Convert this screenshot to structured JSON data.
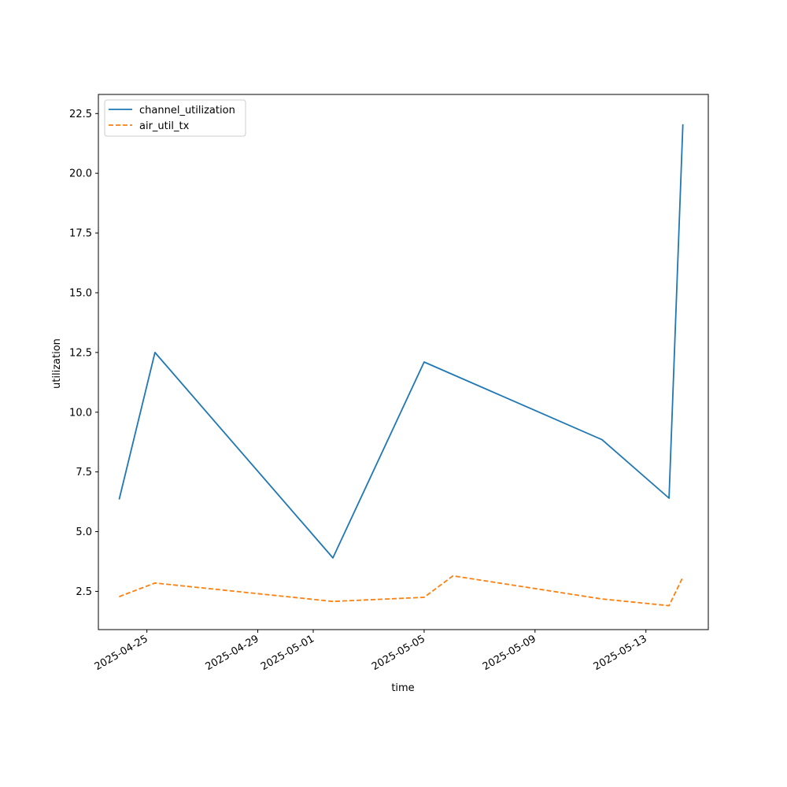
{
  "chart_data": {
    "type": "line",
    "xlabel": "time",
    "ylabel": "utilization",
    "x_ticks": [
      "2025-04-25",
      "2025-04-29",
      "2025-05-01",
      "2025-05-05",
      "2025-05-09",
      "2025-05-13"
    ],
    "y_ticks": [
      "2.5",
      "5.0",
      "7.5",
      "10.0",
      "12.5",
      "15.0",
      "17.5",
      "20.0",
      "22.5"
    ],
    "ylim": [
      0.9,
      23.3
    ],
    "xlim": [
      "2025-04-23T06:00",
      "2025-05-15T06:00"
    ],
    "grid": false,
    "legend": "top-left",
    "series": [
      {
        "name": "channel_utilization",
        "color": "#1f77b4",
        "style": "solid",
        "points": [
          [
            "2025-04-24T00:00",
            6.35
          ],
          [
            "2025-04-25T07:00",
            12.5
          ],
          [
            "2025-05-01T17:00",
            3.9
          ],
          [
            "2025-05-05T00:00",
            12.1
          ],
          [
            "2025-05-11T10:00",
            8.85
          ],
          [
            "2025-05-13T20:00",
            6.4
          ],
          [
            "2025-05-14T08:00",
            22.05
          ]
        ]
      },
      {
        "name": "air_util_tx",
        "color": "#ff7f0e",
        "style": "dashed",
        "points": [
          [
            "2025-04-24T00:00",
            2.28
          ],
          [
            "2025-04-25T07:00",
            2.85
          ],
          [
            "2025-05-01T17:00",
            2.08
          ],
          [
            "2025-05-05T00:00",
            2.25
          ],
          [
            "2025-05-06T01:00",
            3.15
          ],
          [
            "2025-05-11T10:00",
            2.18
          ],
          [
            "2025-05-13T20:00",
            1.9
          ],
          [
            "2025-05-14T08:00",
            3.1
          ]
        ]
      }
    ]
  }
}
